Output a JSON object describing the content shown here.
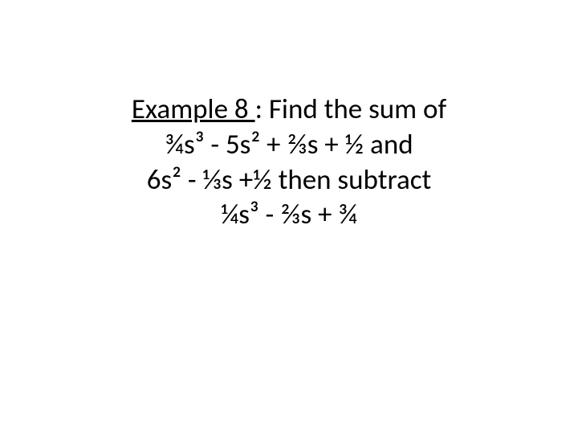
{
  "slide": {
    "background_color": "#ffffff",
    "text_color": "#000000",
    "font_family": "Calibri",
    "lines": {
      "line1_underlined": "Example 8 ",
      "line1_rest": ": Find the sum of",
      "line2": "¾s³ - 5s² + ⅔s + ½ and",
      "line3": "6s² - ⅓s +½ then subtract",
      "line4": "¼s³ - ⅔s + ¾"
    },
    "font_sizes": {
      "main": 35
    }
  }
}
